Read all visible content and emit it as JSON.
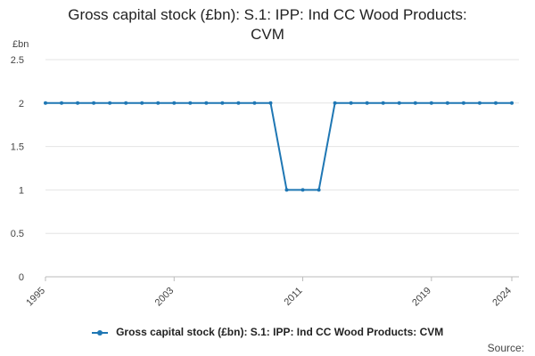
{
  "chart_data": {
    "type": "line",
    "title_lines": [
      "Gross capital stock (£bn): S.1: IPP: Ind CC Wood Products:",
      "CVM"
    ],
    "ylabel": "£bn",
    "xlabel": "",
    "ylim": [
      0,
      2.5
    ],
    "y_ticks": [
      "0",
      "0.5",
      "1",
      "1.5",
      "2",
      "2.5"
    ],
    "x_tick_labels": [
      "1995",
      "2003",
      "2011",
      "2019",
      "2024"
    ],
    "x": [
      1995,
      1996,
      1997,
      1998,
      1999,
      2000,
      2001,
      2002,
      2003,
      2004,
      2005,
      2006,
      2007,
      2008,
      2009,
      2010,
      2011,
      2012,
      2013,
      2014,
      2015,
      2016,
      2017,
      2018,
      2019,
      2020,
      2021,
      2022,
      2023,
      2024
    ],
    "series": [
      {
        "name": "Gross capital stock (£bn): S.1: IPP: Ind CC Wood Products: CVM",
        "color": "#1f77b4",
        "values": [
          2,
          2,
          2,
          2,
          2,
          2,
          2,
          2,
          2,
          2,
          2,
          2,
          2,
          2,
          2,
          1,
          1,
          1,
          2,
          2,
          2,
          2,
          2,
          2,
          2,
          2,
          2,
          2,
          2,
          2
        ]
      }
    ],
    "grid": true,
    "legend_position": "bottom"
  },
  "footer": {
    "source_label": "Source:"
  }
}
